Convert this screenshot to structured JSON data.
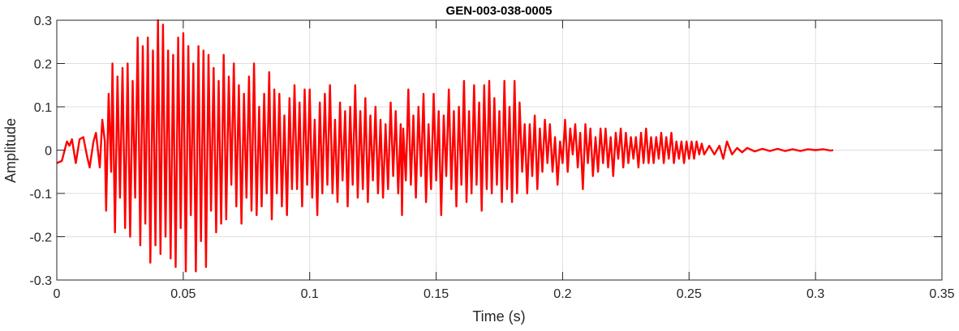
{
  "chart_data": {
    "type": "line",
    "title": "GEN-003-038-0005",
    "xlabel": "Time (s)",
    "ylabel": "Amplitude",
    "xlim": [
      0,
      0.35
    ],
    "ylim": [
      -0.3,
      0.3
    ],
    "xticks": [
      "0",
      "0.05",
      "0.1",
      "0.15",
      "0.2",
      "0.25",
      "0.3",
      "0.35"
    ],
    "xtick_values": [
      0,
      0.05,
      0.1,
      0.15,
      0.2,
      0.25,
      0.3,
      0.35
    ],
    "yticks": [
      "0.3",
      "0.2",
      "0.1",
      "0",
      "-0.1",
      "-0.2",
      "-0.3"
    ],
    "ytick_values": [
      0.3,
      0.2,
      0.1,
      0,
      -0.1,
      -0.2,
      -0.3
    ],
    "grid": true,
    "line_color": "#FF0000",
    "series": [
      {
        "x": [
          0,
          0.002,
          0.004,
          0.005,
          0.006,
          0.0075,
          0.009,
          0.0105,
          0.012,
          0.013,
          0.0145,
          0.0155,
          0.017,
          0.018,
          0.019,
          0.0195,
          0.0205,
          0.0215,
          0.022,
          0.023,
          0.024,
          0.025,
          0.026,
          0.027,
          0.028,
          0.029,
          0.03,
          0.031,
          0.032,
          0.033,
          0.034,
          0.035,
          0.036,
          0.037,
          0.038,
          0.039,
          0.04,
          0.041,
          0.042,
          0.043,
          0.044,
          0.045,
          0.046,
          0.047,
          0.048,
          0.049,
          0.05,
          0.051,
          0.052,
          0.053,
          0.054,
          0.055,
          0.056,
          0.057,
          0.058,
          0.059,
          0.06,
          0.061,
          0.062,
          0.063,
          0.064,
          0.065,
          0.066,
          0.067,
          0.068,
          0.069,
          0.07,
          0.071,
          0.072,
          0.073,
          0.074,
          0.075,
          0.076,
          0.077,
          0.078,
          0.079,
          0.08,
          0.081,
          0.082,
          0.083,
          0.084,
          0.085,
          0.086,
          0.087,
          0.088,
          0.089,
          0.09,
          0.091,
          0.092,
          0.093,
          0.094,
          0.095,
          0.096,
          0.097,
          0.098,
          0.099,
          0.1,
          0.101,
          0.102,
          0.103,
          0.104,
          0.105,
          0.106,
          0.107,
          0.108,
          0.109,
          0.11,
          0.111,
          0.112,
          0.113,
          0.114,
          0.115,
          0.116,
          0.117,
          0.118,
          0.119,
          0.12,
          0.121,
          0.122,
          0.123,
          0.124,
          0.125,
          0.126,
          0.127,
          0.128,
          0.129,
          0.13,
          0.131,
          0.132,
          0.133,
          0.134,
          0.135,
          0.136,
          0.1365,
          0.137,
          0.138,
          0.139,
          0.14,
          0.141,
          0.142,
          0.143,
          0.144,
          0.145,
          0.146,
          0.147,
          0.148,
          0.149,
          0.15,
          0.151,
          0.152,
          0.153,
          0.154,
          0.155,
          0.156,
          0.157,
          0.158,
          0.159,
          0.16,
          0.161,
          0.162,
          0.163,
          0.164,
          0.165,
          0.166,
          0.167,
          0.168,
          0.169,
          0.17,
          0.171,
          0.172,
          0.173,
          0.174,
          0.175,
          0.176,
          0.177,
          0.178,
          0.179,
          0.18,
          0.181,
          0.182,
          0.183,
          0.184,
          0.185,
          0.186,
          0.187,
          0.188,
          0.189,
          0.19,
          0.191,
          0.192,
          0.193,
          0.194,
          0.195,
          0.196,
          0.197,
          0.198,
          0.199,
          0.2,
          0.201,
          0.202,
          0.203,
          0.204,
          0.205,
          0.206,
          0.207,
          0.208,
          0.209,
          0.21,
          0.211,
          0.212,
          0.213,
          0.214,
          0.215,
          0.216,
          0.217,
          0.218,
          0.219,
          0.22,
          0.221,
          0.222,
          0.223,
          0.224,
          0.225,
          0.226,
          0.227,
          0.228,
          0.229,
          0.23,
          0.231,
          0.232,
          0.233,
          0.234,
          0.235,
          0.236,
          0.237,
          0.238,
          0.239,
          0.24,
          0.241,
          0.242,
          0.243,
          0.244,
          0.245,
          0.246,
          0.247,
          0.248,
          0.249,
          0.25,
          0.251,
          0.252,
          0.253,
          0.254,
          0.255,
          0.256,
          0.258,
          0.26,
          0.262,
          0.2635,
          0.265,
          0.267,
          0.269,
          0.271,
          0.273,
          0.276,
          0.279,
          0.282,
          0.285,
          0.288,
          0.291,
          0.294,
          0.297,
          0.3,
          0.303,
          0.306,
          0.307
        ],
        "y": [
          -0.03,
          -0.025,
          0.02,
          0.01,
          0.025,
          -0.03,
          0.025,
          0.03,
          -0.015,
          -0.04,
          0.02,
          0.04,
          -0.04,
          0.07,
          0.02,
          -0.14,
          0.13,
          -0.05,
          0.2,
          -0.19,
          0.17,
          -0.11,
          0.19,
          -0.18,
          0.2,
          -0.2,
          0.16,
          -0.11,
          0.26,
          -0.22,
          0.24,
          -0.17,
          0.26,
          -0.26,
          0.23,
          -0.22,
          0.3,
          -0.24,
          0.29,
          -0.2,
          0.23,
          -0.25,
          0.22,
          -0.27,
          0.26,
          -0.18,
          0.27,
          -0.28,
          0.24,
          -0.15,
          0.2,
          -0.28,
          0.24,
          -0.21,
          0.23,
          -0.27,
          0.22,
          -0.14,
          0.19,
          -0.19,
          0.16,
          -0.17,
          0.22,
          -0.16,
          0.17,
          -0.08,
          0.2,
          -0.13,
          0.15,
          -0.17,
          0.13,
          -0.11,
          0.17,
          -0.14,
          0.2,
          -0.15,
          0.1,
          -0.13,
          0.13,
          -0.1,
          0.18,
          -0.16,
          0.14,
          -0.1,
          0.13,
          -0.13,
          0.08,
          -0.15,
          0.12,
          -0.09,
          0.15,
          -0.09,
          0.11,
          -0.13,
          0.14,
          -0.08,
          0.14,
          -0.11,
          0.07,
          -0.15,
          0.11,
          -0.1,
          0.13,
          -0.08,
          0.15,
          -0.1,
          0.07,
          -0.12,
          0.11,
          -0.07,
          0.09,
          -0.13,
          0.1,
          -0.08,
          0.15,
          -0.11,
          0.09,
          -0.09,
          0.12,
          -0.12,
          0.08,
          -0.07,
          0.1,
          -0.1,
          0.07,
          -0.11,
          0.06,
          -0.09,
          0.11,
          -0.06,
          0.09,
          -0.1,
          0.06,
          -0.15,
          0.05,
          -0.07,
          0.14,
          -0.08,
          0.08,
          -0.11,
          0.1,
          -0.06,
          0.13,
          -0.12,
          0.06,
          -0.09,
          0.13,
          -0.07,
          0.09,
          -0.15,
          0.08,
          -0.06,
          0.14,
          -0.09,
          0.09,
          -0.13,
          0.1,
          -0.08,
          0.16,
          -0.12,
          0.09,
          -0.1,
          0.15,
          -0.08,
          0.11,
          -0.14,
          0.15,
          -0.09,
          0.16,
          -0.1,
          0.12,
          -0.08,
          0.09,
          -0.12,
          0.16,
          -0.09,
          0.1,
          -0.12,
          0.16,
          -0.1,
          0.11,
          -0.05,
          0.06,
          -0.1,
          0.06,
          -0.06,
          0.08,
          -0.09,
          0.05,
          -0.05,
          0.07,
          -0.03,
          0.06,
          -0.05,
          0.03,
          -0.08,
          0.02,
          -0.03,
          0.07,
          -0.05,
          0.05,
          -0.01,
          0.06,
          -0.04,
          0.04,
          -0.09,
          0.06,
          -0.03,
          0.05,
          -0.06,
          0.03,
          -0.05,
          0.05,
          -0.03,
          0.05,
          -0.04,
          0.03,
          -0.06,
          0.04,
          -0.02,
          0.05,
          -0.04,
          0.04,
          -0.03,
          0.03,
          -0.02,
          0.03,
          -0.04,
          0.04,
          -0.03,
          0.05,
          -0.03,
          0.03,
          -0.03,
          0.03,
          -0.02,
          0.04,
          -0.03,
          0.03,
          -0.02,
          0.04,
          -0.03,
          0.02,
          -0.02,
          0.02,
          -0.03,
          0.02,
          -0.02,
          0.02,
          -0.02,
          0.02,
          -0.01,
          0.015,
          -0.01,
          0.01,
          -0.01,
          0.01,
          -0.02,
          0.02,
          -0.01,
          0.005,
          -0.005,
          0.005,
          -0.003,
          0.003,
          -0.002,
          0.003,
          -0.002,
          0.002,
          -0.002,
          0.002,
          0.0,
          0.002,
          -0.001,
          0.0
        ]
      }
    ]
  }
}
